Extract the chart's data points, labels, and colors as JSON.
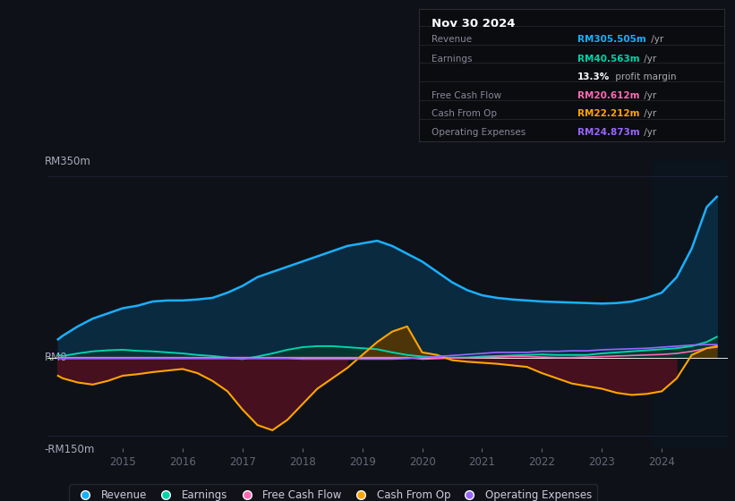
{
  "bg_color": "#0e1218",
  "chart_bg": "#0e1218",
  "title": "Nov 30 2024",
  "revenue_color": "#1ab0ff",
  "earnings_color": "#00d4aa",
  "fcf_color": "#ff69b4",
  "cashfromop_color": "#ffa500",
  "opex_color": "#9966ff",
  "fill_revenue_color": "#0d2d4a",
  "y_label_top": "RM350m",
  "y_label_zero": "RM0",
  "y_label_bottom": "-RM150m",
  "legend_labels": [
    "Revenue",
    "Earnings",
    "Free Cash Flow",
    "Cash From Op",
    "Operating Expenses"
  ],
  "legend_colors": [
    "#1ab0ff",
    "#00d4aa",
    "#ff69b4",
    "#ffa500",
    "#9966ff"
  ],
  "years": [
    2013.92,
    2014.0,
    2014.25,
    2014.5,
    2014.75,
    2015.0,
    2015.25,
    2015.5,
    2015.75,
    2016.0,
    2016.25,
    2016.5,
    2016.75,
    2017.0,
    2017.25,
    2017.5,
    2017.75,
    2018.0,
    2018.25,
    2018.5,
    2018.75,
    2019.0,
    2019.25,
    2019.5,
    2019.75,
    2020.0,
    2020.25,
    2020.5,
    2020.75,
    2021.0,
    2021.25,
    2021.5,
    2021.75,
    2022.0,
    2022.25,
    2022.5,
    2022.75,
    2023.0,
    2023.25,
    2023.5,
    2023.75,
    2024.0,
    2024.25,
    2024.5,
    2024.75,
    2024.92
  ],
  "revenue": [
    35,
    42,
    60,
    75,
    85,
    95,
    100,
    108,
    110,
    110,
    112,
    115,
    125,
    138,
    155,
    165,
    175,
    185,
    195,
    205,
    215,
    220,
    225,
    215,
    200,
    185,
    165,
    145,
    130,
    120,
    115,
    112,
    110,
    108,
    107,
    106,
    105,
    104,
    105,
    108,
    115,
    125,
    155,
    210,
    290,
    310
  ],
  "earnings": [
    5,
    3,
    8,
    12,
    14,
    15,
    13,
    12,
    10,
    8,
    5,
    3,
    0,
    -3,
    2,
    8,
    15,
    20,
    22,
    22,
    20,
    18,
    16,
    10,
    5,
    2,
    0,
    0,
    0,
    2,
    3,
    4,
    5,
    6,
    5,
    5,
    5,
    8,
    10,
    12,
    14,
    16,
    18,
    22,
    30,
    40
  ],
  "fcf": [
    0,
    0,
    0,
    0,
    0,
    0,
    0,
    0,
    0,
    0,
    0,
    0,
    0,
    0,
    0,
    0,
    0,
    0,
    0,
    0,
    0,
    0,
    0,
    0,
    0,
    -3,
    -2,
    -1,
    0,
    0,
    1,
    2,
    2,
    1,
    0,
    0,
    1,
    2,
    3,
    4,
    5,
    6,
    8,
    12,
    18,
    20
  ],
  "cash_from_op": [
    -35,
    -40,
    -48,
    -52,
    -45,
    -35,
    -32,
    -28,
    -25,
    -22,
    -30,
    -45,
    -65,
    -100,
    -130,
    -140,
    -120,
    -90,
    -60,
    -40,
    -20,
    5,
    30,
    50,
    60,
    10,
    5,
    -5,
    -8,
    -10,
    -12,
    -15,
    -18,
    -30,
    -40,
    -50,
    -55,
    -60,
    -68,
    -72,
    -70,
    -65,
    -40,
    5,
    18,
    22
  ],
  "opex": [
    -2,
    -2,
    -2,
    -2,
    -2,
    -2,
    -2,
    -2,
    -2,
    -2,
    -2,
    -2,
    -2,
    -2,
    -2,
    -2,
    -2,
    -3,
    -3,
    -3,
    -3,
    -3,
    -3,
    -3,
    -2,
    0,
    2,
    4,
    6,
    8,
    10,
    10,
    10,
    12,
    12,
    13,
    13,
    15,
    16,
    17,
    18,
    20,
    22,
    24,
    25,
    25
  ],
  "ylim": [
    -175,
    380
  ],
  "xlim": [
    2013.75,
    2025.1
  ],
  "xticks": [
    2015,
    2016,
    2017,
    2018,
    2019,
    2020,
    2021,
    2022,
    2023,
    2024
  ],
  "zero_y": 0,
  "top_y": 350,
  "bot_y": -150,
  "info_rows": [
    {
      "label": "Revenue",
      "value": "RM305.505m",
      "suffix": " /yr",
      "value_color": "#1ab0ff"
    },
    {
      "label": "Earnings",
      "value": "RM40.563m",
      "suffix": " /yr",
      "value_color": "#00d4aa"
    },
    {
      "label": "",
      "value": "13.3%",
      "suffix": " profit margin",
      "value_color": "#ffffff"
    },
    {
      "label": "Free Cash Flow",
      "value": "RM20.612m",
      "suffix": " /yr",
      "value_color": "#ff69b4"
    },
    {
      "label": "Cash From Op",
      "value": "RM22.212m",
      "suffix": " /yr",
      "value_color": "#ffa500"
    },
    {
      "label": "Operating Expenses",
      "value": "RM24.873m",
      "suffix": " /yr",
      "value_color": "#9966ff"
    }
  ]
}
